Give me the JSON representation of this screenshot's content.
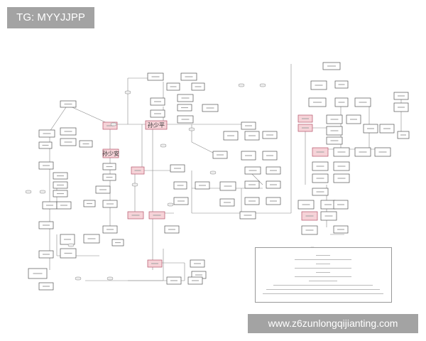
{
  "overlay": {
    "top_left_label": "TG: MYYJJPP",
    "bottom_right_label": "www.z6zunlongqijianting.com"
  },
  "diagram": {
    "highlight_color": "#f6d3d8",
    "highlight_border": "#b5536a",
    "node_border": "#555555",
    "main_nodes": [
      "孙少平",
      "孙少安"
    ]
  }
}
